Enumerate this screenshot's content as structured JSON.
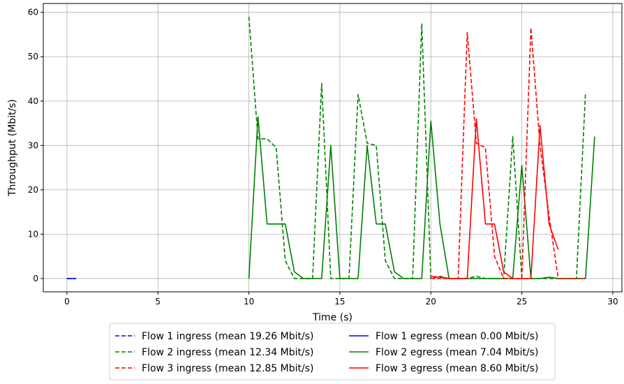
{
  "chart_data": {
    "type": "line",
    "title": "",
    "xlabel": "Time (s)",
    "ylabel": "Throughput (Mbit/s)",
    "xlim": [
      -1.3,
      30.5
    ],
    "ylim": [
      -3,
      62
    ],
    "xticks": [
      0,
      5,
      10,
      15,
      20,
      25,
      30
    ],
    "yticks": [
      0,
      10,
      20,
      30,
      40,
      50,
      60
    ],
    "grid": true,
    "legend_position": "bottom-center",
    "series": [
      {
        "name": "Flow 1 ingress (mean 19.26 Mbit/s)",
        "color": "#0000ff",
        "style": "dashed",
        "x": [
          0,
          0.5
        ],
        "y": [
          0,
          0
        ]
      },
      {
        "name": "Flow 1 egress (mean 0.00 Mbit/s)",
        "color": "#0000ff",
        "style": "solid",
        "x": [
          0,
          0.5
        ],
        "y": [
          0,
          0
        ]
      },
      {
        "name": "Flow 2 ingress (mean 12.34 Mbit/s)",
        "color": "#008000",
        "style": "dashed",
        "x": [
          10,
          10.5,
          11,
          11.5,
          12,
          12.5,
          13,
          13.5,
          14,
          14.5,
          15,
          15.5,
          16,
          16.5,
          17,
          17.5,
          18,
          18.5,
          19,
          19.5,
          20,
          20.5,
          21,
          21.5,
          22,
          22.5,
          23,
          23.5,
          24,
          24.5,
          25,
          25.5,
          26,
          26.5,
          27,
          27.5,
          28,
          28.5
        ],
        "y": [
          59,
          31.5,
          31.5,
          29.5,
          4,
          0,
          0,
          0,
          44,
          0,
          0,
          0,
          41.5,
          30.5,
          30,
          4,
          0,
          0,
          0,
          57.5,
          0,
          0.5,
          0,
          0,
          0,
          0.5,
          0,
          0,
          0,
          32,
          0,
          0,
          0,
          0,
          0,
          0,
          0,
          42
        ]
      },
      {
        "name": "Flow 2 egress (mean 7.04 Mbit/s)",
        "color": "#008000",
        "style": "solid",
        "x": [
          10,
          10.5,
          11,
          11.5,
          12,
          12.5,
          13,
          13.5,
          14,
          14.5,
          15,
          15.5,
          16,
          16.5,
          17,
          17.5,
          18,
          18.5,
          19,
          19.5,
          20,
          20.5,
          21,
          21.5,
          22,
          22.5,
          23,
          23.5,
          24,
          24.5,
          25,
          25.5,
          26,
          26.5,
          27,
          27.5,
          28,
          28.5,
          29
        ],
        "y": [
          0,
          36.5,
          12.3,
          12.3,
          12.3,
          1.5,
          0,
          0,
          0,
          30,
          0,
          0,
          0,
          30,
          12.3,
          12.3,
          1.5,
          0,
          0,
          0,
          35.5,
          12.3,
          0,
          0,
          0,
          0,
          0,
          0,
          0,
          0,
          25.5,
          0,
          0,
          0.3,
          0,
          0,
          0,
          0,
          32
        ]
      },
      {
        "name": "Flow 3 ingress (mean 12.85 Mbit/s)",
        "color": "#ff0000",
        "style": "dashed",
        "x": [
          20,
          20.5,
          21,
          21.5,
          22,
          22.5,
          23,
          23.5,
          24,
          24.5,
          25,
          25.5,
          26,
          26.5,
          27,
          27.5,
          28,
          28.5
        ],
        "y": [
          0,
          0,
          0,
          0,
          55.5,
          30.5,
          29.5,
          5,
          0,
          0,
          0,
          56.5,
          30,
          14,
          0,
          0,
          0,
          0
        ]
      },
      {
        "name": "Flow 3 egress (mean 8.60 Mbit/s)",
        "color": "#ff0000",
        "style": "solid",
        "x": [
          20,
          20.5,
          21,
          21.5,
          22,
          22.5,
          23,
          23.5,
          24,
          24.5,
          25,
          25.5,
          26,
          26.5,
          27
        ],
        "y": [
          0.5,
          0.3,
          0,
          0,
          0,
          36,
          12.3,
          12.3,
          1.5,
          0,
          0,
          0,
          34.5,
          12.3,
          6.5
        ]
      }
    ],
    "legend_order": [
      0,
      2,
      4,
      1,
      3,
      5
    ]
  }
}
